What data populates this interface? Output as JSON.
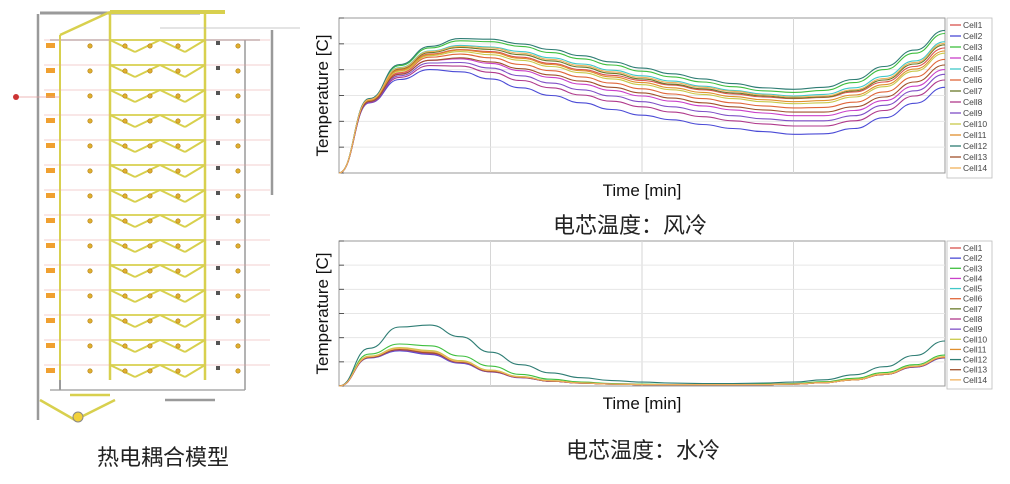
{
  "model_caption": "热电耦合模型",
  "chart_data": [
    {
      "type": "line",
      "caption": "电芯温度：风冷",
      "xlabel": "Time [min]",
      "ylabel": "Temperature [C]",
      "x": [
        0,
        1,
        2,
        3,
        4,
        5,
        6,
        7,
        8,
        9,
        10,
        11,
        12,
        13,
        14,
        15,
        16,
        17,
        18,
        19,
        20
      ],
      "series": [
        {
          "name": "Cell1",
          "color": "#d9534f",
          "values": [
            0,
            0.47,
            0.667,
            0.767,
            0.797,
            0.783,
            0.747,
            0.707,
            0.667,
            0.63,
            0.597,
            0.567,
            0.537,
            0.51,
            0.49,
            0.48,
            0.487,
            0.523,
            0.587,
            0.687,
            0.807
          ]
        },
        {
          "name": "Cell2",
          "color": "#4b4bd6",
          "values": [
            0,
            0.452,
            0.603,
            0.667,
            0.653,
            0.607,
            0.55,
            0.5,
            0.453,
            0.41,
            0.373,
            0.343,
            0.313,
            0.287,
            0.267,
            0.25,
            0.253,
            0.287,
            0.357,
            0.45,
            0.553
          ]
        },
        {
          "name": "Cell3",
          "color": "#3fbf3f",
          "values": [
            0,
            0.478,
            0.693,
            0.807,
            0.853,
            0.847,
            0.817,
            0.777,
            0.737,
            0.697,
            0.657,
            0.62,
            0.587,
            0.557,
            0.53,
            0.52,
            0.533,
            0.583,
            0.667,
            0.773,
            0.9
          ]
        },
        {
          "name": "Cell4",
          "color": "#c940c9",
          "values": [
            0,
            0.46,
            0.64,
            0.727,
            0.737,
            0.707,
            0.66,
            0.617,
            0.573,
            0.533,
            0.497,
            0.463,
            0.433,
            0.407,
            0.387,
            0.37,
            0.37,
            0.403,
            0.467,
            0.56,
            0.667
          ]
        },
        {
          "name": "Cell5",
          "color": "#40c8c8",
          "values": [
            0,
            0.475,
            0.68,
            0.787,
            0.823,
            0.813,
            0.783,
            0.743,
            0.703,
            0.663,
            0.627,
            0.593,
            0.56,
            0.533,
            0.51,
            0.497,
            0.507,
            0.55,
            0.623,
            0.723,
            0.847
          ]
        },
        {
          "name": "Cell6",
          "color": "#e0663a",
          "values": [
            0,
            0.463,
            0.647,
            0.747,
            0.767,
            0.743,
            0.7,
            0.66,
            0.62,
            0.58,
            0.543,
            0.51,
            0.48,
            0.453,
            0.433,
            0.42,
            0.423,
            0.457,
            0.523,
            0.62,
            0.733
          ]
        },
        {
          "name": "Cell7",
          "color": "#6a7a2a",
          "values": [
            0,
            0.472,
            0.673,
            0.777,
            0.81,
            0.797,
            0.763,
            0.723,
            0.683,
            0.643,
            0.607,
            0.573,
            0.543,
            0.517,
            0.497,
            0.483,
            0.49,
            0.53,
            0.6,
            0.703,
            0.827
          ]
        },
        {
          "name": "Cell8",
          "color": "#b03a8c",
          "values": [
            0,
            0.455,
            0.617,
            0.693,
            0.69,
            0.65,
            0.597,
            0.55,
            0.503,
            0.463,
            0.427,
            0.393,
            0.363,
            0.337,
            0.317,
            0.303,
            0.303,
            0.337,
            0.403,
            0.497,
            0.6
          ]
        },
        {
          "name": "Cell9",
          "color": "#7f4fc7",
          "values": [
            0,
            0.458,
            0.627,
            0.71,
            0.713,
            0.677,
            0.627,
            0.58,
            0.537,
            0.497,
            0.46,
            0.427,
            0.397,
            0.37,
            0.35,
            0.337,
            0.337,
            0.37,
            0.437,
            0.53,
            0.637
          ]
        },
        {
          "name": "Cell10",
          "color": "#c9c94a",
          "values": [
            0,
            0.466,
            0.657,
            0.757,
            0.783,
            0.763,
            0.727,
            0.687,
            0.647,
            0.607,
            0.57,
            0.537,
            0.507,
            0.48,
            0.46,
            0.447,
            0.453,
            0.49,
            0.557,
            0.657,
            0.773
          ]
        },
        {
          "name": "Cell11",
          "color": "#e08f2e",
          "values": [
            0,
            0.468,
            0.663,
            0.763,
            0.793,
            0.777,
            0.74,
            0.7,
            0.66,
            0.62,
            0.583,
            0.55,
            0.52,
            0.493,
            0.473,
            0.46,
            0.467,
            0.503,
            0.57,
            0.67,
            0.787
          ]
        },
        {
          "name": "Cell12",
          "color": "#2e7d74",
          "values": [
            0,
            0.48,
            0.7,
            0.817,
            0.867,
            0.863,
            0.833,
            0.797,
            0.757,
            0.717,
            0.677,
            0.64,
            0.607,
            0.577,
            0.55,
            0.54,
            0.553,
            0.603,
            0.687,
            0.793,
            0.92
          ]
        },
        {
          "name": "Cell13",
          "color": "#a0522d",
          "values": [
            0,
            0.461,
            0.637,
            0.727,
            0.743,
            0.717,
            0.673,
            0.633,
            0.593,
            0.553,
            0.517,
            0.483,
            0.453,
            0.427,
            0.407,
            0.393,
            0.393,
            0.427,
            0.49,
            0.587,
            0.697
          ]
        },
        {
          "name": "Cell14",
          "color": "#f2b25c",
          "values": [
            0,
            0.474,
            0.677,
            0.783,
            0.817,
            0.807,
            0.773,
            0.733,
            0.693,
            0.653,
            0.617,
            0.583,
            0.553,
            0.527,
            0.503,
            0.49,
            0.497,
            0.537,
            0.61,
            0.713,
            0.837
          ]
        }
      ]
    },
    {
      "type": "line",
      "caption": "电芯温度：水冷",
      "xlabel": "Time [min]",
      "ylabel": "Temperature [C]",
      "x": [
        0,
        1,
        2,
        3,
        4,
        5,
        6,
        7,
        8,
        9,
        10,
        11,
        12,
        13,
        14,
        15,
        16,
        17,
        18,
        19,
        20
      ],
      "series": [
        {
          "name": "Cell1",
          "color": "#d9534f",
          "values": [
            0,
            0.2,
            0.257,
            0.233,
            0.167,
            0.103,
            0.06,
            0.033,
            0.02,
            0.013,
            0.01,
            0.01,
            0.01,
            0.01,
            0.01,
            0.013,
            0.023,
            0.043,
            0.08,
            0.133,
            0.2
          ]
        },
        {
          "name": "Cell2",
          "color": "#4b4bd6",
          "values": [
            0,
            0.193,
            0.243,
            0.217,
            0.157,
            0.097,
            0.057,
            0.033,
            0.02,
            0.013,
            0.01,
            0.01,
            0.01,
            0.01,
            0.01,
            0.013,
            0.023,
            0.043,
            0.08,
            0.13,
            0.193
          ]
        },
        {
          "name": "Cell3",
          "color": "#3fbf3f",
          "values": [
            0,
            0.22,
            0.29,
            0.277,
            0.207,
            0.137,
            0.08,
            0.047,
            0.027,
            0.017,
            0.013,
            0.01,
            0.01,
            0.01,
            0.013,
            0.017,
            0.03,
            0.053,
            0.093,
            0.147,
            0.213
          ]
        },
        {
          "name": "Cell4",
          "color": "#c940c9",
          "values": [
            0,
            0.197,
            0.25,
            0.227,
            0.163,
            0.1,
            0.06,
            0.033,
            0.02,
            0.013,
            0.01,
            0.01,
            0.01,
            0.01,
            0.01,
            0.013,
            0.023,
            0.043,
            0.08,
            0.133,
            0.197
          ]
        },
        {
          "name": "Cell5",
          "color": "#40c8c8",
          "values": [
            0,
            0.203,
            0.26,
            0.24,
            0.17,
            0.107,
            0.063,
            0.037,
            0.02,
            0.013,
            0.01,
            0.01,
            0.01,
            0.01,
            0.01,
            0.013,
            0.023,
            0.043,
            0.083,
            0.137,
            0.2
          ]
        },
        {
          "name": "Cell6",
          "color": "#e0663a",
          "values": [
            0,
            0.198,
            0.253,
            0.23,
            0.165,
            0.102,
            0.06,
            0.034,
            0.02,
            0.013,
            0.01,
            0.01,
            0.01,
            0.01,
            0.01,
            0.013,
            0.023,
            0.043,
            0.08,
            0.133,
            0.198
          ]
        },
        {
          "name": "Cell7",
          "color": "#6a7a2a",
          "values": [
            0,
            0.201,
            0.258,
            0.236,
            0.168,
            0.105,
            0.062,
            0.035,
            0.02,
            0.013,
            0.01,
            0.01,
            0.01,
            0.01,
            0.01,
            0.013,
            0.023,
            0.043,
            0.082,
            0.135,
            0.2
          ]
        },
        {
          "name": "Cell8",
          "color": "#b03a8c",
          "values": [
            0,
            0.195,
            0.247,
            0.222,
            0.16,
            0.098,
            0.058,
            0.033,
            0.02,
            0.013,
            0.01,
            0.01,
            0.01,
            0.01,
            0.01,
            0.013,
            0.023,
            0.043,
            0.08,
            0.131,
            0.195
          ]
        },
        {
          "name": "Cell9",
          "color": "#7f4fc7",
          "values": [
            0,
            0.196,
            0.248,
            0.224,
            0.161,
            0.099,
            0.059,
            0.033,
            0.02,
            0.013,
            0.01,
            0.01,
            0.01,
            0.01,
            0.01,
            0.013,
            0.023,
            0.043,
            0.08,
            0.132,
            0.196
          ]
        },
        {
          "name": "Cell10",
          "color": "#c9c94a",
          "values": [
            0,
            0.206,
            0.265,
            0.245,
            0.175,
            0.11,
            0.065,
            0.037,
            0.022,
            0.014,
            0.011,
            0.01,
            0.01,
            0.01,
            0.011,
            0.014,
            0.025,
            0.046,
            0.085,
            0.138,
            0.203
          ]
        },
        {
          "name": "Cell11",
          "color": "#e08f2e",
          "values": [
            0,
            0.199,
            0.255,
            0.232,
            0.166,
            0.103,
            0.061,
            0.034,
            0.02,
            0.013,
            0.01,
            0.01,
            0.01,
            0.01,
            0.01,
            0.013,
            0.023,
            0.043,
            0.081,
            0.134,
            0.199
          ]
        },
        {
          "name": "Cell12",
          "color": "#2e7d74",
          "values": [
            0,
            0.26,
            0.407,
            0.42,
            0.34,
            0.233,
            0.147,
            0.09,
            0.057,
            0.037,
            0.027,
            0.02,
            0.017,
            0.017,
            0.02,
            0.027,
            0.043,
            0.077,
            0.133,
            0.21,
            0.31
          ]
        },
        {
          "name": "Cell13",
          "color": "#a0522d",
          "values": [
            0,
            0.197,
            0.251,
            0.228,
            0.164,
            0.101,
            0.06,
            0.034,
            0.02,
            0.013,
            0.01,
            0.01,
            0.01,
            0.01,
            0.01,
            0.013,
            0.023,
            0.043,
            0.08,
            0.133,
            0.197
          ]
        },
        {
          "name": "Cell14",
          "color": "#f2b25c",
          "values": [
            0,
            0.202,
            0.259,
            0.238,
            0.169,
            0.106,
            0.062,
            0.036,
            0.021,
            0.013,
            0.01,
            0.01,
            0.01,
            0.01,
            0.01,
            0.013,
            0.023,
            0.043,
            0.082,
            0.136,
            0.201
          ]
        }
      ]
    }
  ]
}
